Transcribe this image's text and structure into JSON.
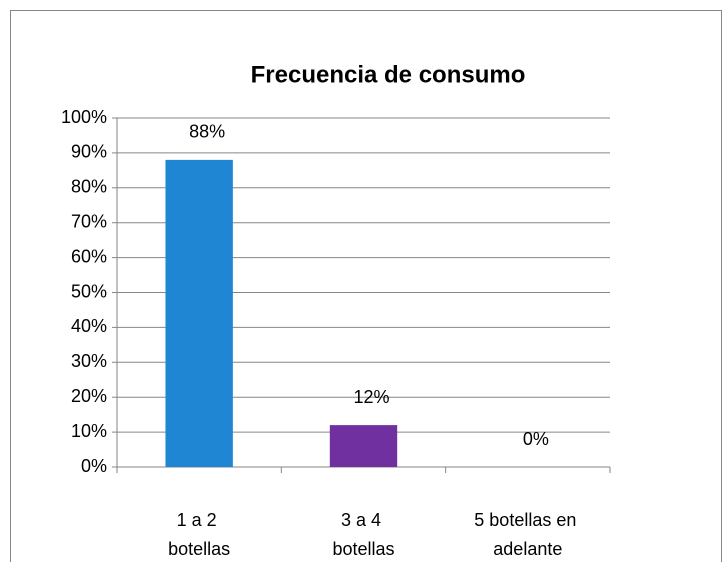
{
  "chart_data": {
    "type": "bar",
    "title": "Frecuencia de consumo",
    "categories": [
      "1 a 2 botellas",
      "3 a 4 botellas",
      "5 botellas en adelante"
    ],
    "values": [
      88,
      12,
      0
    ],
    "value_labels": [
      "88%",
      "12%",
      "0%"
    ],
    "colors": [
      "#1f86d4",
      "#7030a0",
      "#9bbb59"
    ],
    "ylim": [
      0,
      100
    ],
    "yticks": [
      {
        "value": 0,
        "label": "0%"
      },
      {
        "value": 10,
        "label": "10%"
      },
      {
        "value": 20,
        "label": "20%"
      },
      {
        "value": 30,
        "label": "30%"
      },
      {
        "value": 40,
        "label": "40%"
      },
      {
        "value": 50,
        "label": "50%"
      },
      {
        "value": 60,
        "label": "60%"
      },
      {
        "value": 70,
        "label": "70%"
      },
      {
        "value": 80,
        "label": "80%"
      },
      {
        "value": 90,
        "label": "90%"
      },
      {
        "value": 100,
        "label": "100%"
      }
    ],
    "grid": true
  }
}
